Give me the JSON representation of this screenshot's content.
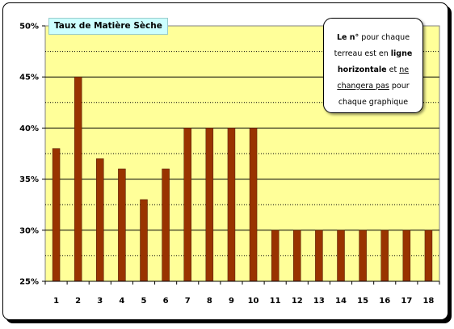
{
  "chart_data": {
    "type": "bar",
    "title": "Taux de Matière Sèche",
    "categories": [
      "1",
      "2",
      "3",
      "4",
      "5",
      "6",
      "7",
      "8",
      "9",
      "10",
      "11",
      "12",
      "13",
      "14",
      "15",
      "16",
      "17",
      "18"
    ],
    "values": [
      38,
      45,
      37,
      36,
      33,
      36,
      40,
      40,
      40,
      40,
      30,
      30,
      30,
      30,
      30,
      30,
      30,
      30
    ],
    "ylim": [
      25,
      50
    ],
    "yticks": [
      25,
      30,
      35,
      40,
      45,
      50
    ],
    "ytick_format": "%",
    "grid": "horizontal-major-and-minor",
    "legend": "none"
  },
  "colors": {
    "bar_fill": "#993300",
    "plot_bg": "#ffff99",
    "title_bg": "#ccffff"
  },
  "note": {
    "p1": "Le n°",
    "p2": " pour chaque terreau est en ",
    "p3": "ligne horizontale",
    "p4": " et ",
    "p5": "ne changera pas",
    "p6": " pour chaque graphique"
  }
}
